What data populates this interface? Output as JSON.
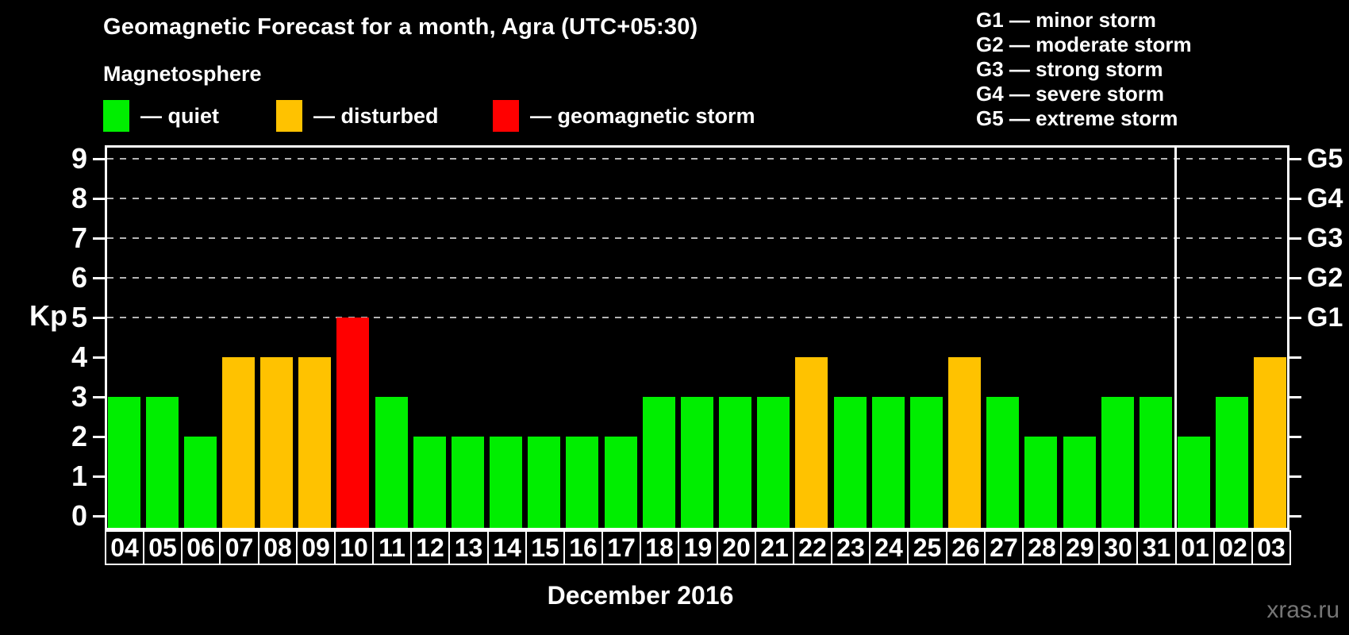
{
  "header": {
    "title": "Geomagnetic Forecast for a month, Agra (UTC+05:30)",
    "subtitle": "Magnetosphere"
  },
  "legend": {
    "items": [
      {
        "name": "quiet",
        "label": "— quiet",
        "color": "#00ee00"
      },
      {
        "name": "disturbed",
        "label": "— disturbed",
        "color": "#ffc200"
      },
      {
        "name": "storm",
        "label": "— geomagnetic storm",
        "color": "#ff0000"
      }
    ]
  },
  "g_legend": {
    "lines": [
      "G1 — minor storm",
      "G2 — moderate storm",
      "G3 — strong storm",
      "G4 — severe storm",
      "G5 — extreme storm"
    ]
  },
  "watermark": "xras.ru",
  "chart_data": {
    "type": "bar",
    "title": "Geomagnetic Forecast for a month, Agra (UTC+05:30)",
    "xlabel": "December 2016",
    "ylabel": "Kp",
    "ylim": [
      0,
      9
    ],
    "left_ticks": [
      0,
      1,
      2,
      3,
      4,
      5,
      6,
      7,
      8,
      9
    ],
    "right_tick_labels": [
      {
        "kp": 5,
        "label": "G1"
      },
      {
        "kp": 6,
        "label": "G2"
      },
      {
        "kp": 7,
        "label": "G3"
      },
      {
        "kp": 8,
        "label": "G4"
      },
      {
        "kp": 9,
        "label": "G5"
      }
    ],
    "gridlines_kp": [
      5,
      6,
      7,
      8,
      9
    ],
    "grid": "dashed horizontal lines at storm levels only",
    "legend_position": "top",
    "month_separator_after_index": 27,
    "colors": {
      "quiet": "#00ee00",
      "disturbed": "#ffc200",
      "storm": "#ff0000"
    },
    "categories": [
      "04",
      "05",
      "06",
      "07",
      "08",
      "09",
      "10",
      "11",
      "12",
      "13",
      "14",
      "15",
      "16",
      "17",
      "18",
      "19",
      "20",
      "21",
      "22",
      "23",
      "24",
      "25",
      "26",
      "27",
      "28",
      "29",
      "30",
      "31",
      "01",
      "02",
      "03"
    ],
    "values": [
      3,
      3,
      2,
      4,
      4,
      4,
      5,
      3,
      2,
      2,
      2,
      2,
      2,
      2,
      3,
      3,
      3,
      3,
      4,
      3,
      3,
      3,
      4,
      3,
      2,
      2,
      3,
      3,
      2,
      3,
      4
    ],
    "bars": [
      {
        "day": "04",
        "kp": 3,
        "status": "quiet"
      },
      {
        "day": "05",
        "kp": 3,
        "status": "quiet"
      },
      {
        "day": "06",
        "kp": 2,
        "status": "quiet"
      },
      {
        "day": "07",
        "kp": 4,
        "status": "disturbed"
      },
      {
        "day": "08",
        "kp": 4,
        "status": "disturbed"
      },
      {
        "day": "09",
        "kp": 4,
        "status": "disturbed"
      },
      {
        "day": "10",
        "kp": 5,
        "status": "storm"
      },
      {
        "day": "11",
        "kp": 3,
        "status": "quiet"
      },
      {
        "day": "12",
        "kp": 2,
        "status": "quiet"
      },
      {
        "day": "13",
        "kp": 2,
        "status": "quiet"
      },
      {
        "day": "14",
        "kp": 2,
        "status": "quiet"
      },
      {
        "day": "15",
        "kp": 2,
        "status": "quiet"
      },
      {
        "day": "16",
        "kp": 2,
        "status": "quiet"
      },
      {
        "day": "17",
        "kp": 2,
        "status": "quiet"
      },
      {
        "day": "18",
        "kp": 3,
        "status": "quiet"
      },
      {
        "day": "19",
        "kp": 3,
        "status": "quiet"
      },
      {
        "day": "20",
        "kp": 3,
        "status": "quiet"
      },
      {
        "day": "21",
        "kp": 3,
        "status": "quiet"
      },
      {
        "day": "22",
        "kp": 4,
        "status": "disturbed"
      },
      {
        "day": "23",
        "kp": 3,
        "status": "quiet"
      },
      {
        "day": "24",
        "kp": 3,
        "status": "quiet"
      },
      {
        "day": "25",
        "kp": 3,
        "status": "quiet"
      },
      {
        "day": "26",
        "kp": 4,
        "status": "disturbed"
      },
      {
        "day": "27",
        "kp": 3,
        "status": "quiet"
      },
      {
        "day": "28",
        "kp": 2,
        "status": "quiet"
      },
      {
        "day": "29",
        "kp": 2,
        "status": "quiet"
      },
      {
        "day": "30",
        "kp": 3,
        "status": "quiet"
      },
      {
        "day": "31",
        "kp": 3,
        "status": "quiet"
      },
      {
        "day": "01",
        "kp": 2,
        "status": "quiet"
      },
      {
        "day": "02",
        "kp": 3,
        "status": "quiet"
      },
      {
        "day": "03",
        "kp": 4,
        "status": "disturbed"
      }
    ]
  }
}
